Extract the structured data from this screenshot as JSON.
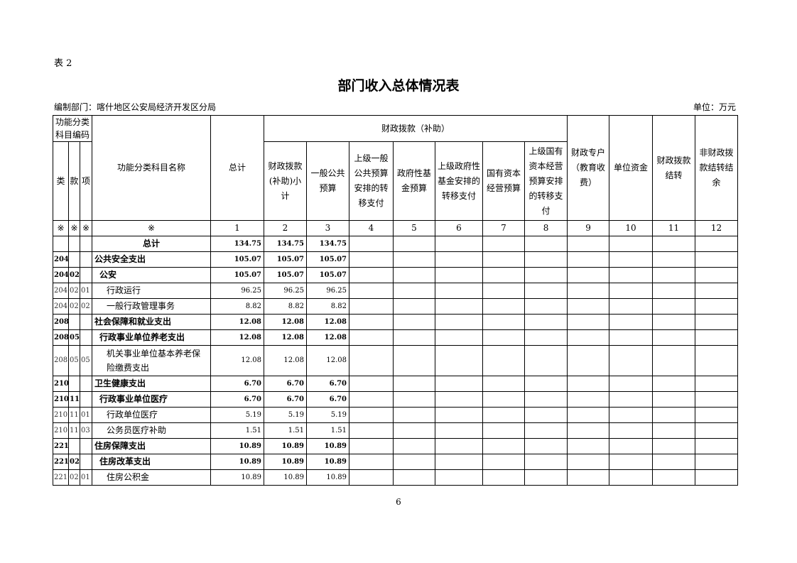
{
  "table_no": "表 2",
  "title": "部门收入总体情况表",
  "dept": "编制部门：喀什地区公安局经济开发区分局",
  "unit": "单位：万元",
  "page_number": "6",
  "headers": {
    "code_group": "功能分类科目编码",
    "lei": "类",
    "kuan": "款",
    "xiang": "项",
    "name": "功能分类科目名称",
    "total": "总计",
    "fiscal_group": "财政拨款（补助）",
    "fiscal_cols": [
      "财政拨款(补助)小计",
      "一般公共预算",
      "上级一般公共预算安排的转移支付",
      "政府性基金预算",
      "上级政府性基金安排的转移支付",
      "国有资本经营预算",
      "上级国有资本经营预算安排的转移支付"
    ],
    "other_cols": [
      "财政专户（教育收费）",
      "单位资金",
      "财政拨款结转",
      "非财政拨款结转结余"
    ],
    "index_row": [
      "※",
      "※",
      "※",
      "※",
      "1",
      "2",
      "3",
      "4",
      "5",
      "6",
      "7",
      "8",
      "9",
      "10",
      "11",
      "12"
    ]
  },
  "rows": [
    {
      "lei": "",
      "kuan": "",
      "xiang": "",
      "name": "总计",
      "total": "134.75",
      "sub": "134.75",
      "gen": "134.75",
      "level": 0
    },
    {
      "lei": "204",
      "kuan": "",
      "xiang": "",
      "name": "公共安全支出",
      "total": "105.07",
      "sub": "105.07",
      "gen": "105.07",
      "level": 1
    },
    {
      "lei": "204",
      "kuan": "02",
      "xiang": "",
      "name": "公安",
      "total": "105.07",
      "sub": "105.07",
      "gen": "105.07",
      "level": 2
    },
    {
      "lei": "204",
      "kuan": "02",
      "xiang": "01",
      "name": "行政运行",
      "total": "96.25",
      "sub": "96.25",
      "gen": "96.25",
      "level": 3
    },
    {
      "lei": "204",
      "kuan": "02",
      "xiang": "02",
      "name": "一般行政管理事务",
      "total": "8.82",
      "sub": "8.82",
      "gen": "8.82",
      "level": 3
    },
    {
      "lei": "208",
      "kuan": "",
      "xiang": "",
      "name": "社会保障和就业支出",
      "total": "12.08",
      "sub": "12.08",
      "gen": "12.08",
      "level": 1
    },
    {
      "lei": "208",
      "kuan": "05",
      "xiang": "",
      "name": "行政事业单位养老支出",
      "total": "12.08",
      "sub": "12.08",
      "gen": "12.08",
      "level": 2
    },
    {
      "lei": "208",
      "kuan": "05",
      "xiang": "05",
      "name": "机关事业单位基本养老保险缴费支出",
      "total": "12.08",
      "sub": "12.08",
      "gen": "12.08",
      "level": 3
    },
    {
      "lei": "210",
      "kuan": "",
      "xiang": "",
      "name": "卫生健康支出",
      "total": "6.70",
      "sub": "6.70",
      "gen": "6.70",
      "level": 1
    },
    {
      "lei": "210",
      "kuan": "11",
      "xiang": "",
      "name": "行政事业单位医疗",
      "total": "6.70",
      "sub": "6.70",
      "gen": "6.70",
      "level": 2
    },
    {
      "lei": "210",
      "kuan": "11",
      "xiang": "01",
      "name": "行政单位医疗",
      "total": "5.19",
      "sub": "5.19",
      "gen": "5.19",
      "level": 3
    },
    {
      "lei": "210",
      "kuan": "11",
      "xiang": "03",
      "name": "公务员医疗补助",
      "total": "1.51",
      "sub": "1.51",
      "gen": "1.51",
      "level": 3
    },
    {
      "lei": "221",
      "kuan": "",
      "xiang": "",
      "name": "住房保障支出",
      "total": "10.89",
      "sub": "10.89",
      "gen": "10.89",
      "level": 1
    },
    {
      "lei": "221",
      "kuan": "02",
      "xiang": "",
      "name": "住房改革支出",
      "total": "10.89",
      "sub": "10.89",
      "gen": "10.89",
      "level": 2
    },
    {
      "lei": "221",
      "kuan": "02",
      "xiang": "01",
      "name": "住房公积金",
      "total": "10.89",
      "sub": "10.89",
      "gen": "10.89",
      "level": 3
    }
  ]
}
